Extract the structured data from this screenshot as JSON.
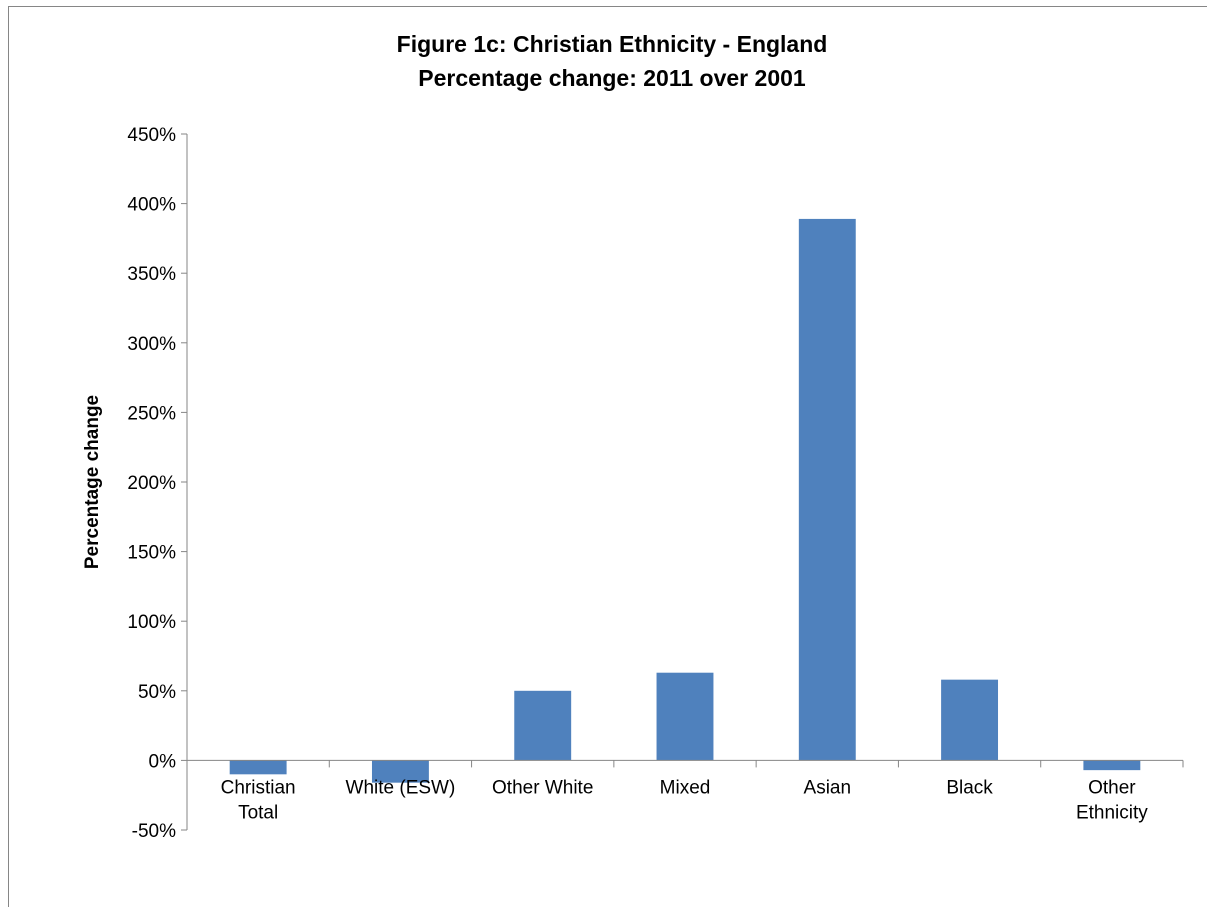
{
  "chart_data": {
    "type": "bar",
    "title": "Figure 1c: Christian Ethnicity - England",
    "subtitle": "Percentage change: 2011 over 2001",
    "xlabel": "",
    "ylabel": "Percentage  change",
    "categories": [
      [
        "Christian",
        "Total"
      ],
      [
        "White (ESW)"
      ],
      [
        "Other White"
      ],
      [
        "Mixed"
      ],
      [
        "Asian"
      ],
      [
        "Black"
      ],
      [
        "Other",
        "Ethnicity"
      ]
    ],
    "values": [
      -10,
      -16,
      50,
      63,
      389,
      58,
      -7
    ],
    "unit": "%",
    "ylim": [
      -50,
      450
    ],
    "yticks": [
      -50,
      0,
      50,
      100,
      150,
      200,
      250,
      300,
      350,
      400,
      450
    ],
    "ytick_labels": [
      "-50%",
      "0%",
      "50%",
      "100%",
      "150%",
      "200%",
      "250%",
      "300%",
      "350%",
      "400%",
      "450%"
    ],
    "grid": false,
    "legend": "none",
    "bar_color": "#4F81BD",
    "axis_color": "#868686"
  }
}
